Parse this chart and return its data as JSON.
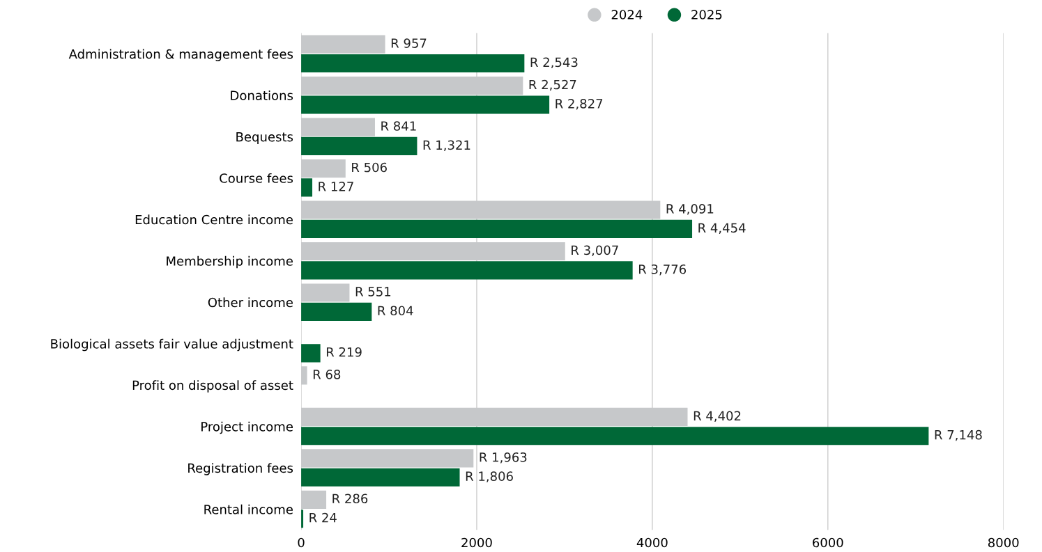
{
  "chart_data": {
    "type": "bar",
    "orientation": "horizontal",
    "categories": [
      "Administration & management fees",
      "Donations",
      "Bequests",
      "Course fees",
      "Education Centre income",
      "Membership income",
      "Other income",
      "Biological assets fair value adjustment",
      "Profit on disposal of asset",
      "Project income",
      "Registration fees",
      "Rental income"
    ],
    "series": [
      {
        "name": "2024",
        "color": "#c6c8ca",
        "values": [
          957,
          2527,
          841,
          506,
          4091,
          3007,
          551,
          null,
          68,
          4402,
          1963,
          286
        ],
        "value_labels": [
          "R 957",
          "R 2,527",
          "R 841",
          "R 506",
          "R 4,091",
          "R 3,007",
          "R 551",
          null,
          "R 68",
          "R 4,402",
          "R 1,963",
          "R 286"
        ]
      },
      {
        "name": "2025",
        "color": "#006837",
        "values": [
          2543,
          2827,
          1321,
          127,
          4454,
          3776,
          804,
          219,
          null,
          7148,
          1806,
          24
        ],
        "value_labels": [
          "R 2,543",
          "R 2,827",
          "R 1,321",
          "R 127",
          "R 4,454",
          "R 3,776",
          "R 804",
          "R 219",
          null,
          "R 7,148",
          "R 1,806",
          "R 24"
        ]
      }
    ],
    "xlim": [
      0,
      8000
    ],
    "xticks": [
      0,
      2000,
      4000,
      6000,
      8000
    ],
    "grid": "x",
    "legend": "top"
  }
}
